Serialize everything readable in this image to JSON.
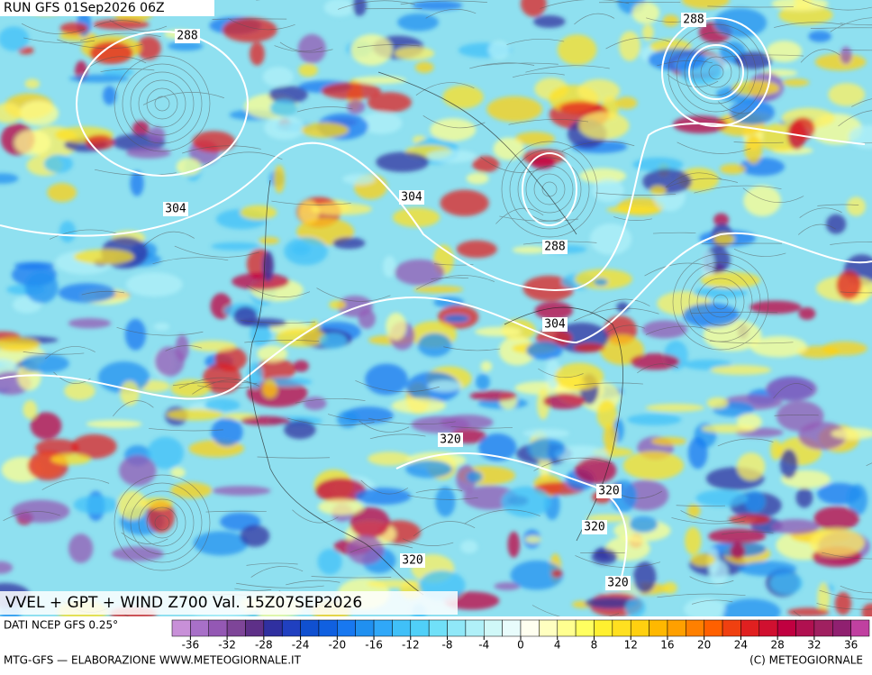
{
  "header": {
    "run": "RUN GFS 01Sep2026 06Z"
  },
  "map": {
    "title": "VVEL + GPT + WIND Z700 Val. 15Z07SEP2026",
    "contour_labels": [
      "288",
      "304",
      "304",
      "288",
      "288",
      "304",
      "320",
      "320",
      "320",
      "320",
      "320"
    ]
  },
  "footer": {
    "source": "DATI NCEP GFS 0.25°",
    "credit": "MTG-GFS — ELABORAZIONE WWW.METEOGIORNALE.IT",
    "copyright": "(C) METEOGIORNALE"
  },
  "colorbar": {
    "lim": [
      -38,
      38
    ],
    "ticks": [
      -36,
      -32,
      -28,
      -24,
      -20,
      -16,
      -12,
      -8,
      -4,
      0,
      4,
      8,
      12,
      16,
      20,
      24,
      28,
      32,
      36
    ],
    "colors": [
      "#c890d8",
      "#a870c8",
      "#9458b4",
      "#7e4598",
      "#5e3088",
      "#3030a0",
      "#2040c0",
      "#1050d0",
      "#1060e0",
      "#1878f0",
      "#2090f0",
      "#30a8f8",
      "#40c0f8",
      "#50d0f8",
      "#70e0f8",
      "#90e8f8",
      "#b0f0f8",
      "#d0f8f8",
      "#e8fcfc",
      "#fffff0",
      "#ffffc0",
      "#ffff90",
      "#ffff60",
      "#fff030",
      "#ffe020",
      "#ffd010",
      "#ffb800",
      "#ffa000",
      "#ff8000",
      "#ff6000",
      "#f04010",
      "#e02020",
      "#d01030",
      "#c00040",
      "#b01050",
      "#a02060",
      "#902070",
      "#c040a0"
    ]
  }
}
